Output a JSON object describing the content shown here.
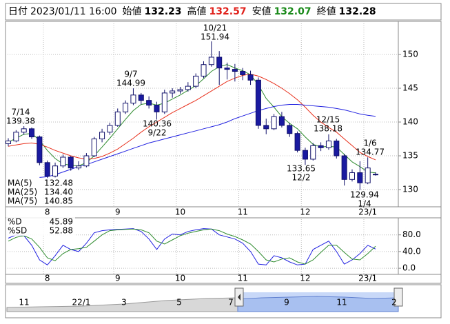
{
  "header": {
    "items": [
      {
        "label": "日付",
        "value": "2023/01/11 16:00",
        "color": "#000000"
      },
      {
        "label": "始値",
        "value": 132.23,
        "color": "#000000"
      },
      {
        "label": "高値",
        "value": 132.57,
        "color": "#e0201a"
      },
      {
        "label": "安値",
        "value": 132.07,
        "color": "#1a8a1a"
      },
      {
        "label": "終値",
        "value": 132.28,
        "color": "#000000"
      }
    ]
  },
  "chart_data": [
    {
      "type": "candlestick",
      "categories": [
        null,
        null,
        null,
        null,
        null,
        "8",
        null,
        null,
        null,
        null,
        null,
        null,
        null,
        null,
        "9",
        null,
        null,
        null,
        null,
        null,
        null,
        null,
        "10",
        null,
        null,
        null,
        null,
        null,
        null,
        null,
        "11",
        null,
        null,
        null,
        null,
        null,
        null,
        null,
        "12",
        null,
        null,
        null,
        null,
        null,
        null,
        null,
        "23/1",
        null
      ],
      "open": [
        136.8,
        137.2,
        138.5,
        139.0,
        137.8,
        134.0,
        132.0,
        133.5,
        134.8,
        133.2,
        133.5,
        135.0,
        137.5,
        138.5,
        139.5,
        141.5,
        142.8,
        144.0,
        143.2,
        142.5,
        141.5,
        144.3,
        144.6,
        144.8,
        145.3,
        146.8,
        148.5,
        149.6,
        148.0,
        147.8,
        147.5,
        147.0,
        146.2,
        139.5,
        139.0,
        140.8,
        139.5,
        138.3,
        135.8,
        134.5,
        136.5,
        136.2,
        137.2,
        135.0,
        131.5,
        132.5,
        131.0,
        132.23
      ],
      "high": [
        137.6,
        138.8,
        139.38,
        139.2,
        138.0,
        134.3,
        134.0,
        135.2,
        135.0,
        134.2,
        135.4,
        137.8,
        139.0,
        139.9,
        142.0,
        143.2,
        144.99,
        144.3,
        143.8,
        143.0,
        144.8,
        145.0,
        145.2,
        145.9,
        147.2,
        149.0,
        151.94,
        150.5,
        148.8,
        148.6,
        148.0,
        147.6,
        146.6,
        140.5,
        141.2,
        141.5,
        139.9,
        138.6,
        136.2,
        136.9,
        137.0,
        138.18,
        137.5,
        135.3,
        133.0,
        134.2,
        134.77,
        132.57
      ],
      "low": [
        136.4,
        137.0,
        138.1,
        137.5,
        133.6,
        131.3,
        131.8,
        133.2,
        132.8,
        132.9,
        133.3,
        134.8,
        137.0,
        138.1,
        139.3,
        141.2,
        142.5,
        142.6,
        142.0,
        140.36,
        141.2,
        143.6,
        144.2,
        144.5,
        145.0,
        146.5,
        148.2,
        145.5,
        146.3,
        146.0,
        146.2,
        145.5,
        139.0,
        138.2,
        138.8,
        139.2,
        137.8,
        135.5,
        133.65,
        134.3,
        135.7,
        135.9,
        134.6,
        130.6,
        131.2,
        129.94,
        130.8,
        132.07
      ],
      "close": [
        137.2,
        138.5,
        139.0,
        137.8,
        134.0,
        132.0,
        133.5,
        134.8,
        133.2,
        133.5,
        135.0,
        137.5,
        138.5,
        139.5,
        141.5,
        142.8,
        144.0,
        143.2,
        142.5,
        141.5,
        144.3,
        144.6,
        144.8,
        145.3,
        146.8,
        148.5,
        149.6,
        148.0,
        147.8,
        147.5,
        147.0,
        146.2,
        139.5,
        139.0,
        140.8,
        139.5,
        138.3,
        135.8,
        134.5,
        136.5,
        136.2,
        137.2,
        135.0,
        131.5,
        132.5,
        131.0,
        133.2,
        132.28
      ],
      "up_color": "#ffffff",
      "down_color": "#1a1aa0",
      "edge_color": "#10106a",
      "series": [
        {
          "name": "MA(5)",
          "color": "#2e8b2e",
          "values": [
            137.0,
            137.6,
            138.2,
            138.3,
            137.3,
            135.8,
            134.6,
            133.8,
            133.6,
            133.5,
            134.0,
            135.0,
            136.3,
            137.6,
            139.0,
            140.4,
            141.7,
            142.6,
            142.8,
            142.5,
            142.8,
            143.4,
            144.0,
            144.7,
            145.4,
            146.4,
            147.5,
            148.2,
            148.5,
            148.0,
            147.6,
            147.0,
            145.5,
            143.5,
            142.2,
            140.8,
            139.8,
            139.0,
            137.8,
            136.7,
            136.3,
            136.4,
            136.3,
            135.2,
            134.1,
            133.4,
            132.6,
            132.48
          ]
        },
        {
          "name": "MA(25)",
          "color": "#e8301c",
          "values": [
            136.4,
            136.6,
            136.8,
            136.9,
            136.7,
            136.3,
            135.8,
            135.4,
            135.0,
            134.7,
            134.5,
            134.6,
            134.9,
            135.4,
            136.0,
            136.8,
            137.6,
            138.5,
            139.3,
            140.0,
            140.7,
            141.4,
            142.0,
            142.6,
            143.2,
            143.9,
            144.6,
            145.3,
            146.0,
            146.5,
            146.9,
            147.1,
            146.8,
            146.3,
            145.7,
            145.0,
            144.2,
            143.3,
            142.2,
            141.0,
            140.0,
            139.2,
            138.5,
            137.5,
            136.5,
            135.5,
            134.9,
            134.4
          ],
          "value_labels": [
            null,
            null,
            null,
            null,
            null,
            null,
            null,
            null,
            null,
            null,
            null,
            null,
            null,
            null,
            null,
            null,
            null,
            null,
            null,
            null,
            null,
            null,
            null,
            null,
            null,
            null,
            null,
            null,
            null,
            null,
            null,
            null,
            null,
            null,
            null,
            null,
            null,
            null,
            null,
            null,
            null,
            null,
            null,
            null,
            null,
            null,
            null,
            "134.40"
          ]
        },
        {
          "name": "MA(75)",
          "color": "#2020e0",
          "values": [
            null,
            null,
            null,
            null,
            131.8,
            131.9,
            132.2,
            132.6,
            133.0,
            133.4,
            133.7,
            134.1,
            134.5,
            134.9,
            135.3,
            135.7,
            136.1,
            136.5,
            136.9,
            137.2,
            137.5,
            137.8,
            138.1,
            138.4,
            138.7,
            139.0,
            139.3,
            139.6,
            140.0,
            140.5,
            140.9,
            141.3,
            141.7,
            142.0,
            142.3,
            142.5,
            142.6,
            142.6,
            142.5,
            142.4,
            142.3,
            142.2,
            142.0,
            141.8,
            141.5,
            141.2,
            141.0,
            140.85
          ]
        }
      ],
      "annotations": [
        {
          "date": "7/14",
          "value": 139.38
        },
        {
          "date": "9/7",
          "value": 144.99
        },
        {
          "date": "10/21",
          "value": 151.94
        },
        {
          "date": "9/22",
          "value": 140.36
        },
        {
          "date": "12/15",
          "value": 138.18
        },
        {
          "date": "12/2",
          "value": 133.65
        },
        {
          "date": "1/6",
          "value": 134.77
        },
        {
          "date": "1/4",
          "value": 129.94
        }
      ],
      "ylim": [
        127.45,
        154.8
      ],
      "yticks": [
        130,
        135,
        140,
        145,
        150
      ],
      "grid": true
    },
    {
      "type": "line",
      "categories": [
        null,
        null,
        null,
        null,
        null,
        "8",
        null,
        null,
        null,
        null,
        null,
        null,
        null,
        null,
        "9",
        null,
        null,
        null,
        null,
        null,
        null,
        null,
        "10",
        null,
        null,
        null,
        null,
        null,
        null,
        null,
        "11",
        null,
        null,
        null,
        null,
        null,
        null,
        null,
        "12",
        null,
        null,
        null,
        null,
        null,
        null,
        null,
        "23/1",
        null
      ],
      "series": [
        {
          "name": "%D",
          "color": "#2020e0",
          "values": [
            72,
            80,
            78,
            55,
            20,
            8,
            30,
            55,
            45,
            40,
            60,
            85,
            90,
            92,
            93,
            94,
            95,
            88,
            70,
            45,
            70,
            82,
            80,
            88,
            92,
            95,
            94,
            80,
            75,
            70,
            60,
            40,
            10,
            8,
            30,
            25,
            15,
            8,
            10,
            45,
            55,
            65,
            40,
            10,
            20,
            35,
            55,
            45.89
          ]
        },
        {
          "name": "%SD",
          "color": "#2e8b2e",
          "values": [
            65,
            74,
            78,
            70,
            50,
            25,
            18,
            35,
            45,
            47,
            50,
            65,
            80,
            90,
            92,
            93,
            94,
            92,
            85,
            65,
            58,
            68,
            78,
            84,
            88,
            92,
            94,
            90,
            82,
            76,
            68,
            58,
            40,
            20,
            15,
            22,
            25,
            15,
            10,
            20,
            38,
            55,
            55,
            38,
            22,
            20,
            35,
            52.88
          ]
        }
      ],
      "ylim": [
        -14.7,
        120.8
      ],
      "yticks": [
        {
          "value": 0,
          "label": "0.0"
        },
        {
          "value": 40,
          "label": "40.0"
        },
        {
          "value": 80,
          "label": "80.0"
        }
      ],
      "grid": true
    }
  ],
  "navigator": {
    "labels": [
      "11",
      "22/1",
      "3",
      "5",
      "7",
      "9",
      "11",
      "2"
    ]
  }
}
